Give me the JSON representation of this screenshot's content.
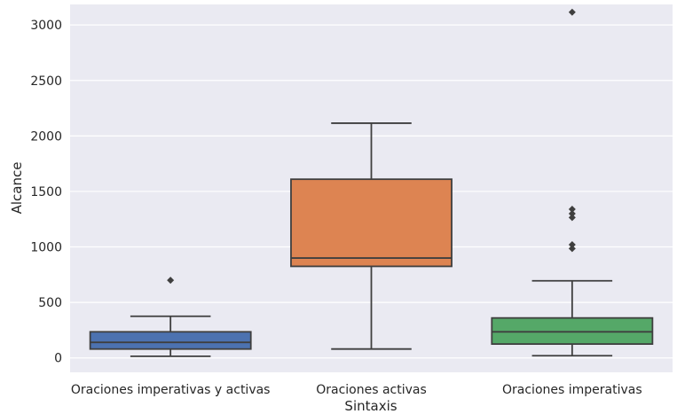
{
  "chart_data": {
    "type": "box",
    "xlabel": "Sintaxis",
    "ylabel": "Alcance",
    "ylim": [
      -130,
      3185
    ],
    "yticks": [
      0,
      500,
      1000,
      1500,
      2000,
      2500,
      3000
    ],
    "grid": true,
    "background": "#eaeaf2",
    "categories": [
      "Oraciones imperativas y activas",
      "Oraciones activas",
      "Oraciones imperativas"
    ],
    "boxes": [
      {
        "category": "Oraciones imperativas y activas",
        "color": "#4c72b0",
        "whisker_low": 15,
        "q1": 80,
        "median": 140,
        "q3": 235,
        "whisker_high": 375,
        "outliers": [
          700
        ]
      },
      {
        "category": "Oraciones activas",
        "color": "#dd8452",
        "whisker_low": 80,
        "q1": 825,
        "median": 900,
        "q3": 1610,
        "whisker_high": 2115,
        "outliers": []
      },
      {
        "category": "Oraciones imperativas",
        "color": "#55a868",
        "whisker_low": 20,
        "q1": 125,
        "median": 235,
        "q3": 360,
        "whisker_high": 695,
        "outliers": [
          985,
          1020,
          1265,
          1300,
          1340,
          3115
        ]
      }
    ]
  }
}
